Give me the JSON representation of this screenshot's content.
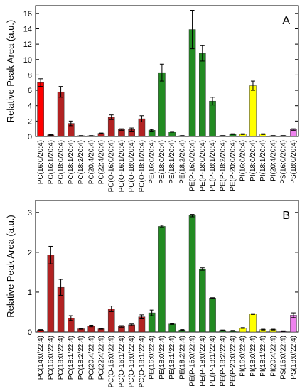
{
  "chart_data": [
    {
      "type": "bar",
      "annotation": "A",
      "ylabel": "Relative Peak Area (a.u.)",
      "categories": [
        "PC(16:0/20:4)",
        "PC(16:1/20:4)",
        "PC(18:0/20:4)",
        "PC(18:1/20:4)",
        "PC(18:2/20:4)",
        "PC(20:4/20:4)",
        "PC(22:4/20:4)",
        "PC(O-16:0/20:4)",
        "PC(O-16:1/20:4)",
        "PC(O-18:0/20:4)",
        "PC(O-18:1/20:4)",
        "PE(16:0/20:4)",
        "PE(18:0/20:4)",
        "PE(18:1/20:4)",
        "PE(18:2/20:4)",
        "PE(P-16:0/20:4)",
        "PE(P-18:0/20:4)",
        "PE(P-18:1/20:4)",
        "PE(P-18:2/20:4)",
        "PE(P-20:0/20:4)",
        "PI(16:0/20:4)",
        "PI(18:0/20:4)",
        "PI(18:1/20:4)",
        "PI(20:4/20:4)",
        "PS(16:0/20:4)",
        "PS(18:0/20:4)"
      ],
      "values": [
        7.0,
        0.2,
        5.8,
        1.7,
        0.1,
        0.1,
        0.4,
        2.5,
        0.9,
        0.9,
        2.3,
        0.8,
        8.3,
        0.6,
        0.1,
        13.9,
        10.8,
        4.6,
        0.1,
        0.3,
        0.3,
        6.6,
        0.3,
        0.1,
        0.1,
        0.9
      ],
      "errors": [
        0.5,
        0.05,
        0.7,
        0.3,
        0.02,
        0.02,
        0.05,
        0.3,
        0.1,
        0.2,
        0.4,
        0.1,
        1.1,
        0.05,
        0.02,
        2.5,
        1.0,
        0.5,
        0.02,
        0.05,
        0.05,
        0.6,
        0.05,
        0.02,
        0.02,
        0.1
      ],
      "colors": [
        "#ff0000",
        "#b22222",
        "#b22222",
        "#b22222",
        "#b22222",
        "#b22222",
        "#b22222",
        "#b22222",
        "#b22222",
        "#b22222",
        "#b22222",
        "#228b22",
        "#228b22",
        "#228b22",
        "#228b22",
        "#228b22",
        "#228b22",
        "#228b22",
        "#228b22",
        "#228b22",
        "#ffff00",
        "#ffff00",
        "#ffff00",
        "#ffff00",
        "#ee82ee",
        "#ee82ee"
      ],
      "ylim": [
        0,
        17
      ],
      "yticks": [
        0,
        2,
        4,
        6,
        8,
        10,
        12,
        14,
        16
      ]
    },
    {
      "type": "bar",
      "annotation": "B",
      "ylabel": "Relative Peak Area (a.u.)",
      "categories": [
        "PC(14:0/22:4)",
        "PC(16:0/22:4)",
        "PC(18:0/22:4)",
        "PC(18:1/22:4)",
        "PC(18:2/22:4)",
        "PC(20:4/22:4)",
        "PC(22:4/22:4)",
        "PC(O-16:0/22:4)",
        "PC(O-16:1/22:4)",
        "PC(O-18:0/22:4)",
        "PC(O-18:1/22:4)",
        "PE(16:0/22:4)",
        "PE(18:0/22:4)",
        "PE(18:1/22:4)",
        "PE(18:2/22:4)",
        "PE(P-16:0/22:4)",
        "PE(P-18:0/22:4)",
        "PE(P-18:1/22:4)",
        "PE(P-18:2/22:4)",
        "PE(P-20:0/22:4)",
        "PI(16:0/22:4)",
        "PI(18:0/22:4)",
        "PI(18:1/22:4)",
        "PI(20:4/22:4)",
        "PS(16:0/22:4)",
        "PS(18:0/22:4)"
      ],
      "values": [
        0.05,
        1.93,
        1.12,
        0.35,
        0.08,
        0.15,
        0.08,
        0.58,
        0.14,
        0.18,
        0.38,
        0.48,
        2.65,
        0.2,
        0.05,
        2.92,
        1.58,
        0.85,
        0.04,
        0.03,
        0.1,
        0.45,
        0.06,
        0.06,
        0.02,
        0.42
      ],
      "errors": [
        0.01,
        0.22,
        0.2,
        0.06,
        0.01,
        0.02,
        0.01,
        0.07,
        0.02,
        0.02,
        0.05,
        0.07,
        0.03,
        0.01,
        0.01,
        0.03,
        0.03,
        0.01,
        0.01,
        0.01,
        0.01,
        0.01,
        0.01,
        0.01,
        0.01,
        0.06
      ],
      "colors": [
        "#ff0000",
        "#b22222",
        "#b22222",
        "#b22222",
        "#b22222",
        "#b22222",
        "#b22222",
        "#b22222",
        "#b22222",
        "#b22222",
        "#b22222",
        "#228b22",
        "#228b22",
        "#228b22",
        "#228b22",
        "#228b22",
        "#228b22",
        "#228b22",
        "#228b22",
        "#228b22",
        "#ffff00",
        "#ffff00",
        "#ffff00",
        "#ffff00",
        "#ee82ee",
        "#ee82ee"
      ],
      "ylim": [
        0,
        3.3
      ],
      "yticks": [
        0,
        1,
        2,
        3
      ]
    }
  ]
}
